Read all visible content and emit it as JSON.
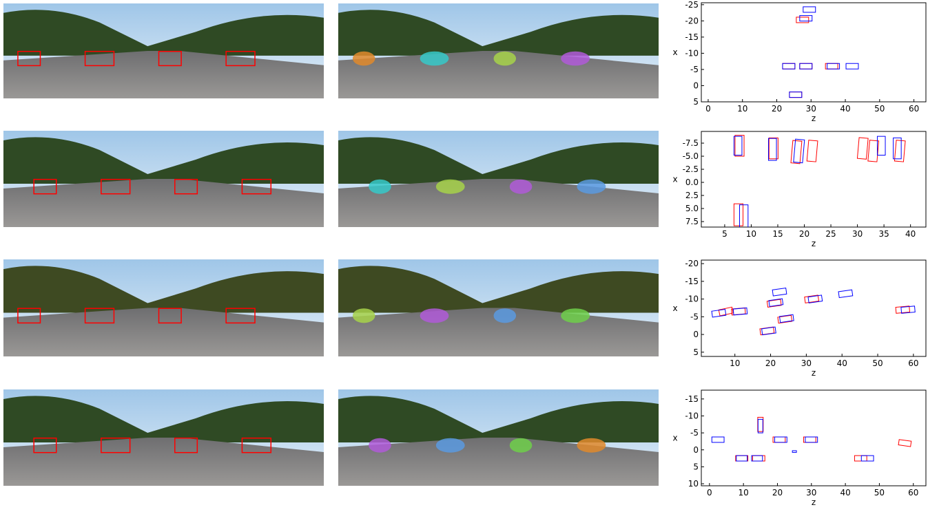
{
  "chart_data": [
    {
      "type": "bev",
      "xlabel": "z",
      "ylabel": "x",
      "xlim": [
        -2,
        63.5
      ],
      "ylim": [
        5,
        -25.6
      ],
      "xticks": [
        0,
        10,
        20,
        30,
        40,
        50,
        60
      ],
      "yticks": [
        5,
        0,
        -5,
        -10,
        -15,
        -20,
        -25
      ],
      "series": [
        {
          "color": "#ff0000",
          "boxes": [
            {
              "z": 27.5,
              "x": -20.3,
              "dz": 3.6,
              "dx": 1.7,
              "angle": 0
            },
            {
              "z": 23.5,
              "x": -6,
              "dz": 3.6,
              "dx": 1.7,
              "angle": 0
            },
            {
              "z": 28.5,
              "x": -6,
              "dz": 3.6,
              "dx": 1.7,
              "angle": 0
            },
            {
              "z": 36,
              "x": -6,
              "dz": 3.6,
              "dx": 1.7,
              "angle": 0
            },
            {
              "z": 25.5,
              "x": 2.8,
              "dz": 3.6,
              "dx": 1.7,
              "angle": 0
            }
          ]
        },
        {
          "color": "#0000ff",
          "boxes": [
            {
              "z": 29.5,
              "x": -23.5,
              "dz": 3.6,
              "dx": 1.7,
              "angle": 0
            },
            {
              "z": 28.5,
              "x": -20.8,
              "dz": 3.6,
              "dx": 1.7,
              "angle": 0
            },
            {
              "z": 23.5,
              "x": -6,
              "dz": 3.6,
              "dx": 1.7,
              "angle": 0
            },
            {
              "z": 28.5,
              "x": -6,
              "dz": 3.6,
              "dx": 1.7,
              "angle": 0
            },
            {
              "z": 36.5,
              "x": -6,
              "dz": 3.6,
              "dx": 1.7,
              "angle": 0
            },
            {
              "z": 42,
              "x": -6,
              "dz": 3.6,
              "dx": 1.7,
              "angle": 0
            },
            {
              "z": 25.5,
              "x": 2.8,
              "dz": 3.6,
              "dx": 1.7,
              "angle": 0
            }
          ]
        }
      ]
    },
    {
      "type": "bev",
      "xlabel": "z",
      "ylabel": "x",
      "xlim": [
        0.6,
        42.9
      ],
      "ylim": [
        8.55,
        -9.74
      ],
      "xticks": [
        5,
        10,
        15,
        20,
        25,
        30,
        35,
        40
      ],
      "yticks": [
        {
          "value": 7.5,
          "label": "7.5"
        },
        {
          "value": 5,
          "label": "5.0"
        },
        {
          "value": 2.5,
          "label": "2.5"
        },
        {
          "value": 0,
          "label": "0.0"
        },
        {
          "value": -2.5,
          "label": "-2.5"
        },
        {
          "value": -5,
          "label": "-5.0"
        },
        {
          "value": -7.5,
          "label": "-7.5"
        }
      ],
      "series": [
        {
          "color": "#ff0000",
          "boxes": [
            {
              "z": 7.8,
              "x": -7,
              "dz": 1.7,
              "dx": 4,
              "angle": 0
            },
            {
              "z": 14.2,
              "x": -6.5,
              "dz": 1.7,
              "dx": 4,
              "angle": 0
            },
            {
              "z": 18.5,
              "x": -5.8,
              "dz": 1.7,
              "dx": 4.3,
              "angle": 5
            },
            {
              "z": 21.5,
              "x": -6,
              "dz": 1.7,
              "dx": 4,
              "angle": 5
            },
            {
              "z": 31,
              "x": -6.5,
              "dz": 1.7,
              "dx": 4,
              "angle": 5
            },
            {
              "z": 33,
              "x": -6,
              "dz": 1.7,
              "dx": 4,
              "angle": 5
            },
            {
              "z": 38,
              "x": -6,
              "dz": 1.7,
              "dx": 4,
              "angle": 5
            },
            {
              "z": 7.6,
              "x": 6.2,
              "dz": 1.7,
              "dx": 4.2,
              "angle": 0
            }
          ]
        },
        {
          "color": "#0000ff",
          "boxes": [
            {
              "z": 7.5,
              "x": -7,
              "dz": 1.5,
              "dx": 3.6,
              "angle": 0
            },
            {
              "z": 14,
              "x": -6.3,
              "dz": 1.5,
              "dx": 4.2,
              "angle": 0
            },
            {
              "z": 19,
              "x": -6,
              "dz": 1.7,
              "dx": 4.4,
              "angle": 5
            },
            {
              "z": 34.5,
              "x": -7,
              "dz": 1.5,
              "dx": 3.6,
              "angle": 0
            },
            {
              "z": 37.5,
              "x": -6.5,
              "dz": 1.5,
              "dx": 4,
              "angle": 0
            },
            {
              "z": 8.6,
              "x": 6.5,
              "dz": 1.6,
              "dx": 4.4,
              "angle": 0
            }
          ]
        }
      ]
    },
    {
      "type": "bev",
      "xlabel": "z",
      "ylabel": "x",
      "xlim": [
        0.6,
        63.5
      ],
      "ylim": [
        6.2,
        -21
      ],
      "xticks": [
        10,
        20,
        30,
        40,
        50,
        60
      ],
      "yticks": [
        5,
        0,
        -5,
        -10,
        -15,
        -20
      ],
      "series": [
        {
          "color": "#ff0000",
          "boxes": [
            {
              "z": 7.5,
              "x": -6.5,
              "dz": 3.8,
              "dx": 1.7,
              "angle": -12
            },
            {
              "z": 11,
              "x": -6.5,
              "dz": 3.8,
              "dx": 1.7,
              "angle": -5
            },
            {
              "z": 19,
              "x": -1,
              "dz": 3.8,
              "dx": 1.7,
              "angle": -8
            },
            {
              "z": 21,
              "x": -8.8,
              "dz": 3.8,
              "dx": 1.7,
              "angle": -8
            },
            {
              "z": 24,
              "x": -4.3,
              "dz": 3.8,
              "dx": 1.7,
              "angle": -8
            },
            {
              "z": 31.5,
              "x": -10,
              "dz": 3.8,
              "dx": 1.7,
              "angle": -8
            },
            {
              "z": 57,
              "x": -7,
              "dz": 3.8,
              "dx": 1.7,
              "angle": -5
            }
          ]
        },
        {
          "color": "#0000ff",
          "boxes": [
            {
              "z": 5.5,
              "x": -6,
              "dz": 3.8,
              "dx": 1.7,
              "angle": -8
            },
            {
              "z": 11.5,
              "x": -6.5,
              "dz": 3.8,
              "dx": 1.7,
              "angle": -5
            },
            {
              "z": 19.5,
              "x": -1,
              "dz": 3.8,
              "dx": 1.7,
              "angle": -8
            },
            {
              "z": 21.5,
              "x": -9,
              "dz": 3.8,
              "dx": 1.7,
              "angle": -8
            },
            {
              "z": 22.5,
              "x": -12,
              "dz": 3.8,
              "dx": 1.7,
              "angle": -8
            },
            {
              "z": 24.5,
              "x": -4.5,
              "dz": 3.8,
              "dx": 1.7,
              "angle": -8
            },
            {
              "z": 32.5,
              "x": -10,
              "dz": 3.8,
              "dx": 1.7,
              "angle": -8
            },
            {
              "z": 41,
              "x": -11.5,
              "dz": 3.8,
              "dx": 1.7,
              "angle": -8
            },
            {
              "z": 58.5,
              "x": -7,
              "dz": 3.8,
              "dx": 1.7,
              "angle": -5
            }
          ]
        }
      ]
    },
    {
      "type": "bev",
      "xlabel": "z",
      "ylabel": "x",
      "xlim": [
        -2.4,
        63.7
      ],
      "ylim": [
        10.6,
        -17.6
      ],
      "xticks": [
        0,
        10,
        20,
        30,
        40,
        50,
        60
      ],
      "yticks": [
        10,
        5,
        0,
        -5,
        -10,
        -15
      ],
      "series": [
        {
          "color": "#ff0000",
          "boxes": [
            {
              "z": 9.5,
              "x": 2.5,
              "dz": 3.6,
              "dx": 1.6,
              "angle": 0
            },
            {
              "z": 14.5,
              "x": 2.5,
              "dz": 3.6,
              "dx": 1.6,
              "angle": 0
            },
            {
              "z": 15,
              "x": -7.5,
              "dz": 1.6,
              "dx": 4.2,
              "angle": 0
            },
            {
              "z": 20.5,
              "x": -3,
              "dz": 3.6,
              "dx": 1.6,
              "angle": 0
            },
            {
              "z": 29.5,
              "x": -3,
              "dz": 3.6,
              "dx": 1.6,
              "angle": 0
            },
            {
              "z": 44.5,
              "x": 2.5,
              "dz": 3.6,
              "dx": 1.6,
              "angle": 0
            },
            {
              "z": 57.5,
              "x": -2,
              "dz": 3.6,
              "dx": 1.6,
              "angle": 8
            }
          ]
        },
        {
          "color": "#0000ff",
          "boxes": [
            {
              "z": 2.5,
              "x": -3,
              "dz": 3.6,
              "dx": 1.6,
              "angle": 0
            },
            {
              "z": 9.5,
              "x": 2.5,
              "dz": 3.2,
              "dx": 1.6,
              "angle": 0
            },
            {
              "z": 14,
              "x": 2.5,
              "dz": 3.2,
              "dx": 1.6,
              "angle": 0
            },
            {
              "z": 15,
              "x": -7,
              "dz": 1.4,
              "dx": 4,
              "angle": 0
            },
            {
              "z": 21,
              "x": -3,
              "dz": 3.6,
              "dx": 1.6,
              "angle": 0
            },
            {
              "z": 25,
              "x": 0.5,
              "dz": 1.2,
              "dx": 0.5,
              "angle": 0
            },
            {
              "z": 30,
              "x": -3,
              "dz": 3.6,
              "dx": 1.6,
              "angle": 0
            },
            {
              "z": 46.5,
              "x": 2.5,
              "dz": 3.6,
              "dx": 1.6,
              "angle": 0
            }
          ]
        }
      ]
    }
  ]
}
